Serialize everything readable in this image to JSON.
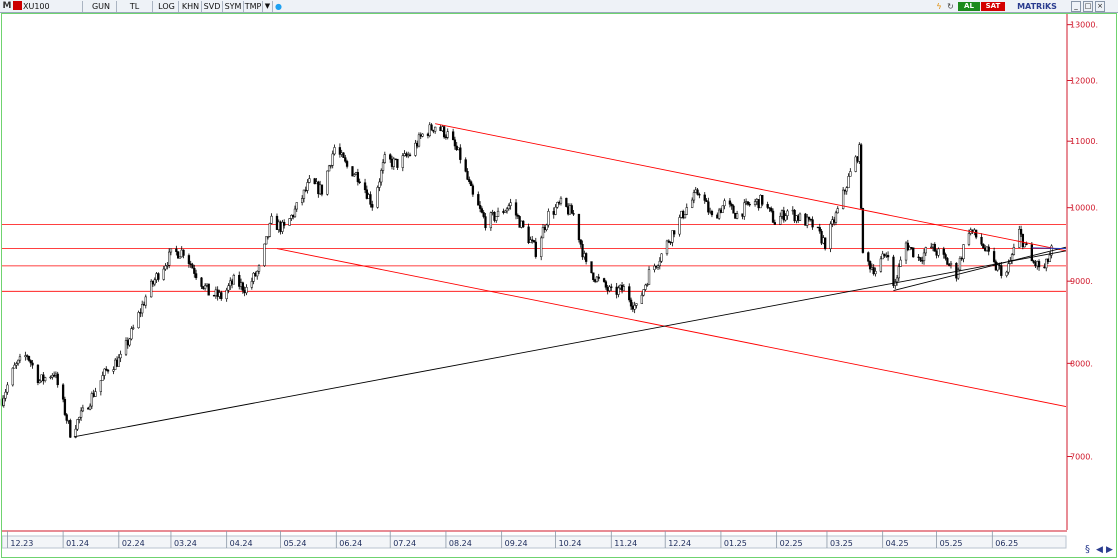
{
  "toolbar": {
    "logo": "M",
    "symbol": "XU100",
    "period": "GUN",
    "currency": "TL",
    "scale": "LOG",
    "buttons": [
      "KHN",
      "SVD",
      "SYM",
      "TMP"
    ],
    "buy": "AL",
    "sell": "SAT",
    "brand": "MATRiKS"
  },
  "colors": {
    "candle": "#000000",
    "trend_red": "#ff0000",
    "trend_black": "#000000",
    "axis": "#d0182b",
    "grid_border": "#6fd36f",
    "buy": "#1c8a1c",
    "sell": "#d40000"
  },
  "chart_data": {
    "type": "candlestick",
    "y_scale": "log",
    "ylim": [
      6300,
      13200
    ],
    "y_ticks": [
      7000,
      8000,
      9000,
      10000,
      11000,
      12000,
      13000
    ],
    "y_tick_labels": [
      "7000.",
      "8000.",
      "9000.",
      "10000.",
      "11000.",
      "12000.",
      "13000."
    ],
    "x_labels": [
      "12.23",
      "01.24",
      "02.24",
      "03.24",
      "04.24",
      "05.24",
      "06.24",
      "07.24",
      "08.24",
      "09.24",
      "10.24",
      "11.24",
      "12.24",
      "01.25",
      "02.25",
      "03.25",
      "04.25",
      "05.25",
      "06.25"
    ],
    "x_range": [
      "2023-11-28",
      "2025-07-12"
    ],
    "price_path": [
      [
        "2023-11-28",
        7600
      ],
      [
        "2023-12-05",
        7950
      ],
      [
        "2023-12-12",
        8100
      ],
      [
        "2023-12-19",
        7800
      ],
      [
        "2023-12-27",
        7900
      ],
      [
        "2024-01-05",
        7250
      ],
      [
        "2024-01-12",
        7450
      ],
      [
        "2024-01-19",
        7700
      ],
      [
        "2024-01-26",
        7950
      ],
      [
        "2024-02-02",
        8050
      ],
      [
        "2024-02-09",
        8400
      ],
      [
        "2024-02-16",
        8800
      ],
      [
        "2024-02-23",
        9100
      ],
      [
        "2024-03-01",
        9350
      ],
      [
        "2024-03-08",
        9400
      ],
      [
        "2024-03-15",
        9100
      ],
      [
        "2024-03-22",
        8850
      ],
      [
        "2024-03-29",
        8800
      ],
      [
        "2024-04-05",
        9000
      ],
      [
        "2024-04-12",
        8900
      ],
      [
        "2024-04-19",
        9150
      ],
      [
        "2024-04-26",
        9800
      ],
      [
        "2024-05-03",
        9700
      ],
      [
        "2024-05-10",
        10000
      ],
      [
        "2024-05-17",
        10350
      ],
      [
        "2024-05-24",
        10250
      ],
      [
        "2024-05-31",
        10900
      ],
      [
        "2024-06-07",
        10600
      ],
      [
        "2024-06-14",
        10450
      ],
      [
        "2024-06-21",
        10050
      ],
      [
        "2024-06-28",
        10700
      ],
      [
        "2024-07-05",
        10650
      ],
      [
        "2024-07-12",
        10800
      ],
      [
        "2024-07-19",
        11100
      ],
      [
        "2024-07-26",
        11250
      ],
      [
        "2024-08-02",
        11100
      ],
      [
        "2024-08-09",
        10750
      ],
      [
        "2024-08-16",
        10150
      ],
      [
        "2024-08-23",
        9800
      ],
      [
        "2024-08-30",
        9900
      ],
      [
        "2024-09-06",
        10050
      ],
      [
        "2024-09-13",
        9700
      ],
      [
        "2024-09-20",
        9400
      ],
      [
        "2024-09-27",
        9900
      ],
      [
        "2024-10-04",
        10050
      ],
      [
        "2024-10-11",
        9900
      ],
      [
        "2024-10-18",
        9200
      ],
      [
        "2024-10-25",
        9000
      ],
      [
        "2024-11-01",
        8850
      ],
      [
        "2024-11-08",
        8900
      ],
      [
        "2024-11-15",
        8650
      ],
      [
        "2024-11-22",
        9100
      ],
      [
        "2024-11-29",
        9350
      ],
      [
        "2024-12-06",
        9700
      ],
      [
        "2024-12-13",
        10000
      ],
      [
        "2024-12-20",
        10250
      ],
      [
        "2024-12-27",
        9850
      ],
      [
        "2025-01-03",
        10050
      ],
      [
        "2025-01-10",
        9900
      ],
      [
        "2025-01-17",
        10050
      ],
      [
        "2025-01-24",
        10100
      ],
      [
        "2025-01-31",
        9800
      ],
      [
        "2025-02-07",
        9950
      ],
      [
        "2025-02-14",
        9850
      ],
      [
        "2025-02-21",
        9750
      ],
      [
        "2025-02-28",
        9500
      ],
      [
        "2025-03-07",
        9950
      ],
      [
        "2025-03-14",
        10500
      ],
      [
        "2025-03-19",
        10850
      ],
      [
        "2025-03-21",
        9300
      ],
      [
        "2025-03-28",
        9150
      ],
      [
        "2025-04-04",
        9400
      ],
      [
        "2025-04-07",
        8900
      ],
      [
        "2025-04-14",
        9500
      ],
      [
        "2025-04-21",
        9300
      ],
      [
        "2025-04-28",
        9450
      ],
      [
        "2025-05-05",
        9300
      ],
      [
        "2025-05-12",
        9100
      ],
      [
        "2025-05-19",
        9700
      ],
      [
        "2025-05-26",
        9500
      ],
      [
        "2025-06-02",
        9200
      ],
      [
        "2025-06-09",
        9100
      ],
      [
        "2025-06-16",
        9650
      ],
      [
        "2025-06-23",
        9250
      ],
      [
        "2025-06-30",
        9150
      ],
      [
        "2025-07-04",
        9400
      ]
    ],
    "horizontal_lines": [
      9760,
      9430,
      9200,
      8870
    ],
    "trend_lines": [
      {
        "color": "red",
        "from": [
          "2024-07-26",
          11280
        ],
        "to": [
          "2025-07-12",
          9400
        ]
      },
      {
        "color": "red",
        "from": [
          "2024-04-29",
          9430
        ],
        "to": [
          "2025-07-12",
          7520
        ]
      },
      {
        "color": "black",
        "from": [
          "2024-01-07",
          7200
        ],
        "to": [
          "2025-07-12",
          9400
        ]
      },
      {
        "color": "black",
        "from": [
          "2025-04-07",
          8880
        ],
        "to": [
          "2025-07-12",
          9450
        ]
      },
      {
        "color": "blue",
        "from": [
          "2025-06-23",
          9440
        ],
        "to": [
          "2025-07-12",
          9430
        ]
      }
    ]
  }
}
